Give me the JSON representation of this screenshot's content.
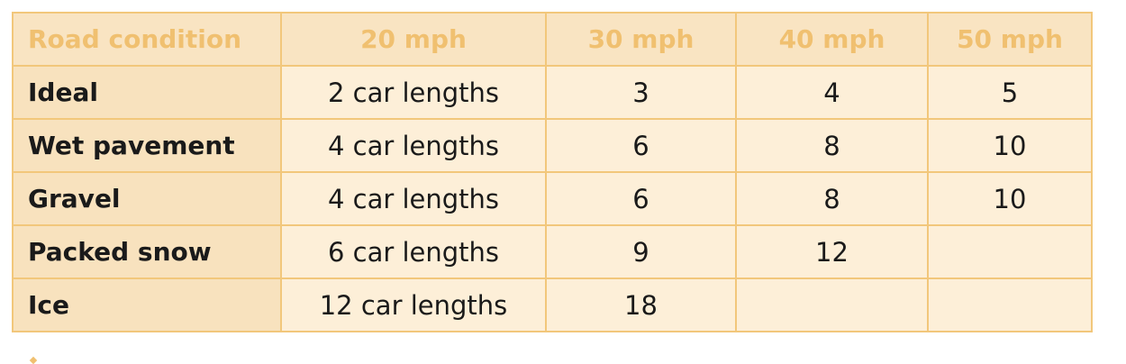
{
  "table": {
    "headers": [
      "Road condition",
      "20 mph",
      "30 mph",
      "40 mph",
      "50 mph"
    ],
    "rows": [
      [
        "Ideal",
        "2 car lengths",
        "3",
        "4",
        "5"
      ],
      [
        "Wet pavement",
        "4 car lengths",
        "6",
        "8",
        "10"
      ],
      [
        "Gravel",
        "4 car lengths",
        "6",
        "8",
        "10"
      ],
      [
        "Packed snow",
        "6 car lengths",
        "9",
        "12",
        ""
      ],
      [
        "Ice",
        "12 car lengths",
        "18",
        "",
        ""
      ]
    ]
  },
  "colors": {
    "border": "#f2c77b",
    "header_text": "#f0c070",
    "header_bg": "#f9e4c2",
    "cell_bg": "#fdefd8",
    "label_bg": "#f8e2be"
  }
}
